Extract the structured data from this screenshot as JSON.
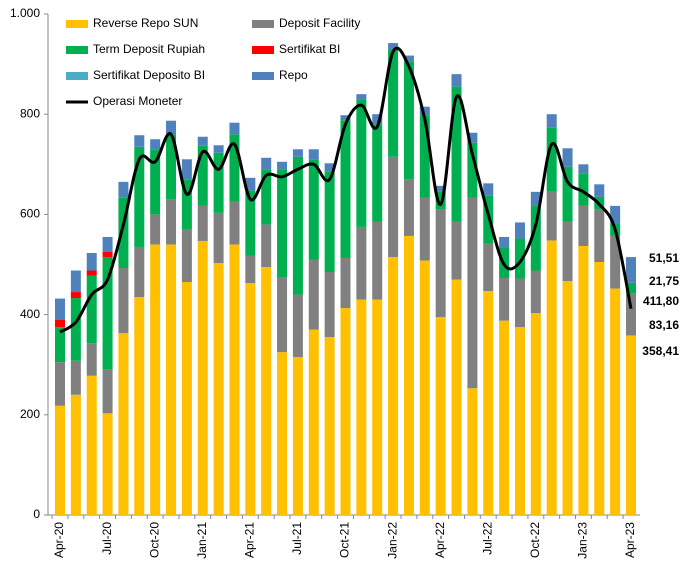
{
  "chart_data": {
    "type": "bar",
    "stacked": true,
    "categories": [
      "Apr-20",
      null,
      null,
      "Jul-20",
      null,
      null,
      "Oct-20",
      null,
      null,
      "Jan-21",
      null,
      null,
      "Apr-21",
      null,
      null,
      "Jul-21",
      null,
      null,
      "Oct-21",
      null,
      null,
      "Jan-22",
      null,
      null,
      "Apr-22",
      null,
      null,
      "Jul-22",
      null,
      null,
      "Oct-22",
      null,
      null,
      "Jan-23",
      null,
      null,
      "Apr-23"
    ],
    "ylim": [
      0,
      1000
    ],
    "yticks": [
      0,
      200,
      400,
      600,
      800,
      {
        "value": 1000,
        "label": "1.000"
      }
    ],
    "grid": false,
    "legend": "top-left",
    "series": [
      {
        "name": "Reverse Repo SUN",
        "color": "#FFC000",
        "value_label_color": "#ED7D31",
        "values": [
          218,
          240,
          278,
          203,
          363,
          435,
          540,
          540,
          465,
          547,
          503,
          540,
          463,
          495,
          325,
          315,
          370,
          355,
          413,
          430,
          430,
          515,
          557,
          508,
          395,
          470,
          253,
          447,
          388,
          375,
          403,
          548,
          467,
          537,
          505,
          452,
          358.41
        ],
        "value_labels": [
          null,
          null,
          null,
          null,
          null,
          null,
          null,
          null,
          null,
          null,
          null,
          null,
          null,
          null,
          null,
          null,
          null,
          null,
          null,
          null,
          null,
          null,
          null,
          null,
          null,
          null,
          null,
          null,
          null,
          null,
          null,
          null,
          null,
          null,
          null,
          null,
          "358,41"
        ]
      },
      {
        "name": "Deposit Facility",
        "color": "#808080",
        "value_label_color": "#808080",
        "values": [
          87,
          68,
          65,
          87,
          130,
          100,
          60,
          90,
          105,
          70,
          100,
          85,
          55,
          85,
          150,
          125,
          140,
          130,
          100,
          145,
          155,
          200,
          113,
          125,
          215,
          115,
          380,
          95,
          85,
          97,
          85,
          97,
          118,
          80,
          105,
          105,
          83.16
        ],
        "value_labels": [
          null,
          null,
          null,
          null,
          null,
          null,
          null,
          null,
          null,
          null,
          null,
          null,
          null,
          null,
          null,
          null,
          null,
          null,
          null,
          null,
          null,
          null,
          null,
          null,
          null,
          null,
          null,
          null,
          null,
          null,
          null,
          null,
          null,
          null,
          null,
          null,
          "83,16"
        ]
      },
      {
        "name": "Term Deposit Rupiah",
        "color": "#00B050",
        "value_label_color": "#00B050",
        "values": [
          70,
          125,
          135,
          225,
          140,
          200,
          130,
          130,
          100,
          120,
          120,
          135,
          130,
          110,
          215,
          275,
          200,
          200,
          275,
          255,
          195,
          215,
          235,
          165,
          35,
          270,
          110,
          95,
          60,
          80,
          130,
          128,
          110,
          65,
          25,
          25,
          21.75
        ],
        "value_labels": [
          null,
          null,
          null,
          null,
          null,
          null,
          null,
          null,
          null,
          null,
          null,
          null,
          null,
          null,
          null,
          null,
          null,
          null,
          null,
          null,
          null,
          null,
          null,
          null,
          null,
          null,
          null,
          null,
          null,
          null,
          null,
          null,
          null,
          null,
          null,
          null,
          "21,75"
        ]
      },
      {
        "name": "Sertifikat BI",
        "color": "#FF0000",
        "values": [
          15,
          12,
          10,
          10,
          0,
          0,
          0,
          0,
          0,
          0,
          0,
          0,
          0,
          0,
          0,
          0,
          0,
          0,
          0,
          0,
          0,
          0,
          0,
          0,
          0,
          0,
          0,
          0,
          0,
          0,
          0,
          0,
          0,
          0,
          0,
          0,
          0
        ]
      },
      {
        "name": "Sertifikat Deposito BI",
        "color": "#4BACC6",
        "values": [
          0,
          0,
          0,
          0,
          0,
          0,
          0,
          0,
          0,
          0,
          0,
          0,
          0,
          0,
          0,
          0,
          0,
          0,
          0,
          0,
          0,
          0,
          0,
          0,
          0,
          0,
          0,
          0,
          0,
          0,
          0,
          0,
          0,
          0,
          0,
          0,
          0
        ]
      },
      {
        "name": "Repo",
        "color": "#4F81BD",
        "value_label_color": "#4F81BD",
        "values": [
          42,
          43,
          35,
          30,
          32,
          23,
          20,
          27,
          40,
          18,
          15,
          23,
          25,
          23,
          15,
          15,
          20,
          17,
          10,
          10,
          20,
          12,
          12,
          17,
          12,
          25,
          20,
          25,
          22,
          32,
          27,
          27,
          37,
          18,
          25,
          35,
          51.51
        ],
        "value_labels": [
          null,
          null,
          null,
          null,
          null,
          null,
          null,
          null,
          null,
          null,
          null,
          null,
          null,
          null,
          null,
          null,
          null,
          null,
          null,
          null,
          null,
          null,
          null,
          null,
          null,
          null,
          null,
          null,
          null,
          null,
          null,
          null,
          null,
          null,
          null,
          null,
          "51,51"
        ]
      },
      {
        "name": "Operasi Moneter",
        "color": "#000000",
        "type": "line",
        "value_label_color": "#000000",
        "values": [
          365,
          385,
          440,
          470,
          580,
          710,
          705,
          760,
          640,
          725,
          690,
          740,
          630,
          678,
          675,
          690,
          700,
          670,
          780,
          818,
          775,
          925,
          895,
          790,
          620,
          835,
          720,
          600,
          500,
          505,
          580,
          740,
          665,
          645,
          620,
          570,
          411.8
        ],
        "value_labels": [
          null,
          null,
          null,
          null,
          null,
          null,
          null,
          null,
          null,
          null,
          null,
          null,
          null,
          null,
          null,
          null,
          null,
          null,
          null,
          null,
          null,
          null,
          null,
          null,
          null,
          null,
          null,
          null,
          null,
          null,
          null,
          null,
          null,
          null,
          null,
          null,
          "411,80"
        ]
      }
    ]
  }
}
